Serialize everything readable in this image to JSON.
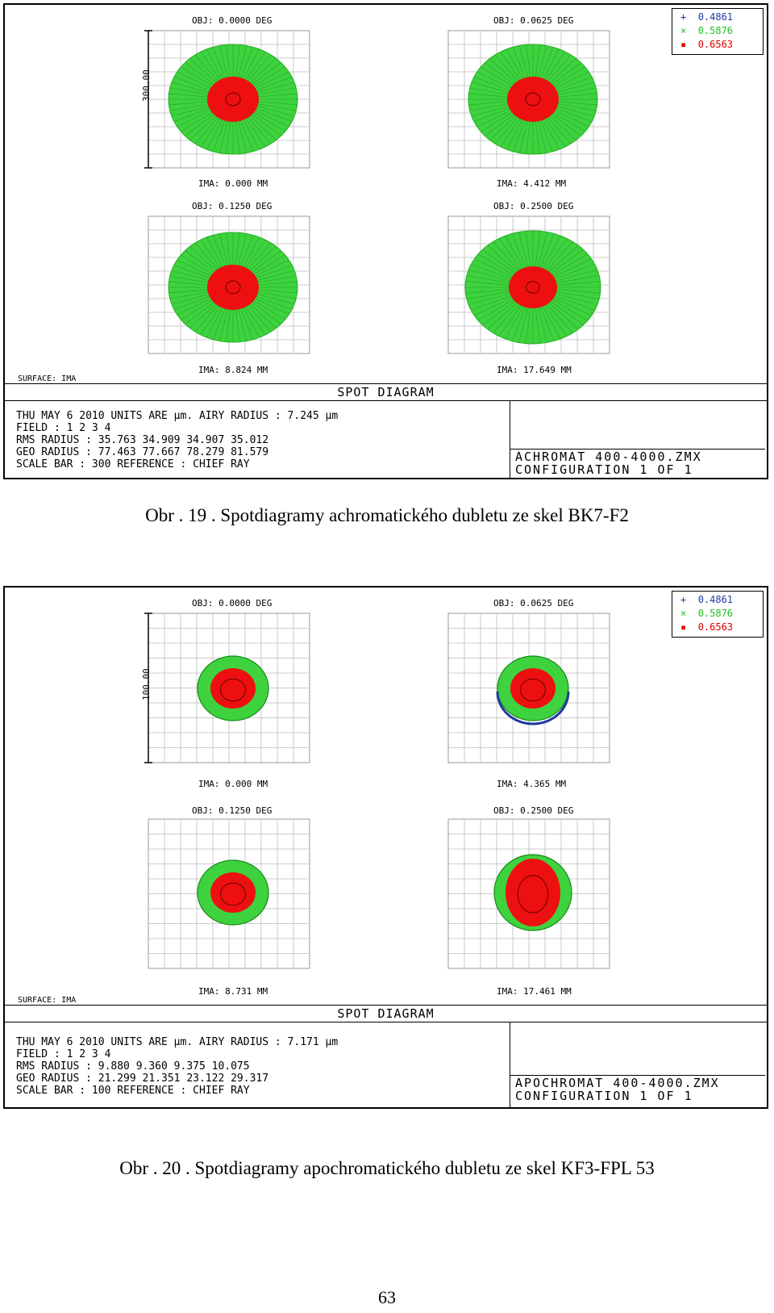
{
  "figures": [
    {
      "legend": [
        "0.4861",
        "0.5876",
        "0.6563"
      ],
      "legend_marks": [
        "+",
        "×",
        "▪"
      ],
      "legend_colors": [
        "#1f3aa0",
        "#20c020",
        "#e00000"
      ],
      "scale_label": "300.00",
      "fields": [
        {
          "obj": "OBJ: 0.0000 DEG",
          "ima": "IMA: 0.000 MM"
        },
        {
          "obj": "OBJ: 0.0625 DEG",
          "ima": "IMA: 4.412 MM"
        },
        {
          "obj": "OBJ: 0.1250 DEG",
          "ima": "IMA: 8.824 MM"
        },
        {
          "obj": "OBJ: 0.2500 DEG",
          "ima": "IMA: 17.649 MM"
        }
      ],
      "surface": "SURFACE: IMA",
      "title": "SPOT DIAGRAM",
      "info_lines": [
        "THU MAY 6 2010  UNITS ARE µm.  AIRY RADIUS : 7.245 µm",
        "FIELD      :        1          2          3         4",
        "RMS RADIUS :     35.763     34.909     34.907    35.012",
        "GEO RADIUS :     77.463     77.667     78.279    81.579",
        "SCALE BAR  :    300                 REFERENCE  : CHIEF RAY"
      ],
      "config_lines": [
        "ACHROMAT 400-4000.ZMX",
        "CONFIGURATION 1 OF 1"
      ],
      "caption": "Obr . 19 . Spotdiagramy achromatického dubletu ze skel BK7-F2"
    },
    {
      "legend": [
        "0.4861",
        "0.5876",
        "0.6563"
      ],
      "legend_marks": [
        "+",
        "×",
        "▪"
      ],
      "legend_colors": [
        "#1f3aa0",
        "#20c020",
        "#e00000"
      ],
      "scale_label": "100.00",
      "fields": [
        {
          "obj": "OBJ: 0.0000 DEG",
          "ima": "IMA: 0.000 MM"
        },
        {
          "obj": "OBJ: 0.0625 DEG",
          "ima": "IMA: 4.365 MM"
        },
        {
          "obj": "OBJ: 0.1250 DEG",
          "ima": "IMA: 8.731 MM"
        },
        {
          "obj": "OBJ: 0.2500 DEG",
          "ima": "IMA: 17.461 MM"
        }
      ],
      "surface": "SURFACE: IMA",
      "title": "SPOT DIAGRAM",
      "info_lines": [
        "THU MAY 6 2010  UNITS ARE µm.  AIRY RADIUS : 7.171 µm",
        "FIELD      :        1          2          3         4",
        "RMS RADIUS :      9.880      9.360      9.375    10.075",
        "GEO RADIUS :     21.299     21.351     23.122    29.317",
        "SCALE BAR  :    100                 REFERENCE  : CHIEF RAY"
      ],
      "config_lines": [
        "APOCHROMAT 400-4000.ZMX",
        "CONFIGURATION 1 OF 1"
      ],
      "caption": "Obr . 20 . Spotdiagramy apochromatického dubletu ze skel KF3-FPL 53"
    }
  ],
  "page_number": "63"
}
